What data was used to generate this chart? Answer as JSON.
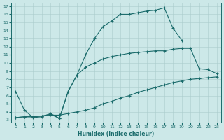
{
  "xlabel": "Humidex (Indice chaleur)",
  "bg_color": "#cce8e8",
  "line_color": "#1a6b6b",
  "grid_color": "#aacccc",
  "xlim_min": -0.5,
  "xlim_max": 23.5,
  "ylim_min": 2.7,
  "ylim_max": 17.4,
  "xticks": [
    0,
    1,
    2,
    3,
    4,
    5,
    6,
    7,
    8,
    9,
    10,
    11,
    12,
    13,
    14,
    15,
    16,
    17,
    18,
    19,
    20,
    21,
    22,
    23
  ],
  "yticks": [
    3,
    4,
    5,
    6,
    7,
    8,
    9,
    10,
    11,
    12,
    13,
    14,
    15,
    16,
    17
  ],
  "series1_x": [
    0,
    1,
    2,
    3,
    4,
    5,
    6,
    7,
    8,
    9,
    10,
    11,
    12,
    13,
    14,
    15,
    16,
    17,
    18,
    19
  ],
  "series1_y": [
    6.5,
    4.2,
    3.3,
    3.4,
    3.8,
    3.2,
    6.5,
    8.5,
    11.0,
    13.0,
    14.5,
    15.2,
    16.0,
    16.0,
    16.2,
    16.4,
    16.5,
    16.8,
    14.3,
    12.8
  ],
  "series2_x": [
    0,
    1,
    2,
    3,
    4,
    5,
    6,
    7,
    8,
    9,
    10,
    11,
    12,
    13,
    14,
    15,
    16,
    17,
    18,
    19,
    20,
    21,
    22,
    23
  ],
  "series2_y": [
    3.3,
    3.4,
    3.4,
    3.5,
    3.6,
    3.6,
    3.8,
    4.0,
    4.2,
    4.5,
    5.0,
    5.3,
    5.7,
    6.0,
    6.4,
    6.7,
    7.0,
    7.3,
    7.6,
    7.8,
    8.0,
    8.1,
    8.2,
    8.3
  ],
  "series3_x": [
    0,
    1,
    2,
    3,
    4,
    5,
    6,
    7,
    8,
    9,
    10,
    11,
    12,
    13,
    14,
    15,
    16,
    17,
    18,
    19,
    20,
    21,
    22,
    23
  ],
  "series3_y": [
    3.3,
    3.4,
    3.4,
    3.5,
    3.7,
    3.2,
    6.5,
    8.5,
    9.5,
    10.0,
    10.5,
    10.8,
    11.0,
    11.2,
    11.3,
    11.4,
    11.5,
    11.5,
    11.7,
    11.8,
    11.8,
    9.3,
    9.2,
    8.7
  ]
}
